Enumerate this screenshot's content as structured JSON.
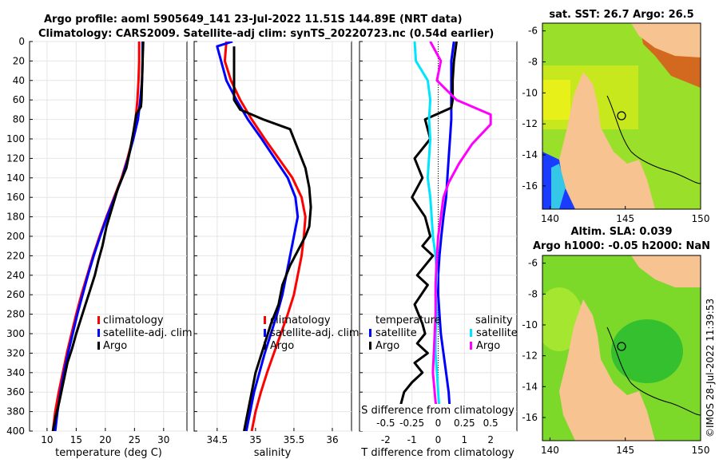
{
  "header": {
    "title_line1": "Argo profile: aoml 5905649_141 23-Jul-2022 11.51S 144.89E (NRT data)",
    "title_line2": "Climatology: CARS2009. Satellite-adj clim: synTS_20220723.nc (0.54d earlier)",
    "copyright": "©IMOS 28-Jul-2022 11:39:53"
  },
  "colors": {
    "climatology": "#ff0000",
    "satellite": "#0000ff",
    "argo": "#000000",
    "temperature": "#0000ff",
    "salinity": "#ff00ff",
    "sat_light": "#00e5ff"
  },
  "chart_data": [
    {
      "type": "line",
      "id": "temperature",
      "xlabel": "temperature (deg C)",
      "ylabel": "",
      "xlim": [
        7,
        34
      ],
      "ylim": [
        400,
        0
      ],
      "x_ticks": [
        10,
        15,
        20,
        25,
        30
      ],
      "y_ticks": [
        0,
        20,
        40,
        60,
        80,
        100,
        120,
        140,
        160,
        180,
        200,
        220,
        240,
        260,
        280,
        300,
        320,
        340,
        360,
        380,
        400
      ],
      "legend": [
        "climatology",
        "satellite-adj. clim",
        "Argo"
      ],
      "legend_position": "lower-right",
      "series": [
        {
          "name": "climatology",
          "color": "#ff0000",
          "x": [
            25.8,
            25.8,
            25.7,
            25.5,
            25.2,
            24.7,
            23.8,
            22.8,
            21.5,
            20.2,
            19.0,
            17.9,
            16.9,
            15.9,
            15.0,
            14.2,
            13.4,
            12.7,
            12.0,
            11.4,
            11.0
          ],
          "y": [
            0,
            20,
            40,
            60,
            80,
            100,
            120,
            140,
            160,
            180,
            200,
            220,
            240,
            260,
            280,
            300,
            320,
            340,
            360,
            380,
            400
          ]
        },
        {
          "name": "satellite-adj. clim",
          "color": "#0000ff",
          "x": [
            26.4,
            26.4,
            26.3,
            26.0,
            25.6,
            24.8,
            23.9,
            22.9,
            21.6,
            20.3,
            19.1,
            18.0,
            17.0,
            16.1,
            15.2,
            14.4,
            13.6,
            12.9,
            12.3,
            11.8,
            11.4
          ],
          "y": [
            0,
            20,
            40,
            60,
            80,
            100,
            120,
            140,
            160,
            180,
            200,
            220,
            240,
            260,
            280,
            300,
            320,
            340,
            360,
            380,
            400
          ]
        },
        {
          "name": "Argo",
          "color": "#000000",
          "x": [
            26.5,
            26.4,
            26.3,
            26.2,
            26.1,
            25.3,
            24.9,
            24.3,
            23.6,
            22.2,
            21.2,
            20.2,
            19.5,
            18.8,
            18.2,
            17.4,
            16.6,
            15.8,
            15.0,
            14.3,
            13.5,
            12.8,
            12.1,
            11.5,
            11.0
          ],
          "y": [
            0,
            20,
            40,
            60,
            67,
            75,
            90,
            110,
            130,
            150,
            170,
            190,
            210,
            225,
            240,
            255,
            270,
            285,
            300,
            315,
            330,
            350,
            370,
            385,
            400
          ]
        }
      ]
    },
    {
      "type": "line",
      "id": "salinity",
      "xlabel": "salinity",
      "ylabel": "",
      "xlim": [
        34.2,
        36.25
      ],
      "ylim": [
        400,
        0
      ],
      "x_ticks": [
        34.5,
        35,
        35.5,
        36
      ],
      "legend": [
        "climatology",
        "satellite-adj. clim",
        "Argo"
      ],
      "legend_position": "lower-right",
      "series": [
        {
          "name": "climatology",
          "color": "#ff0000",
          "x": [
            34.62,
            34.6,
            34.68,
            34.8,
            34.95,
            35.12,
            35.3,
            35.48,
            35.6,
            35.65,
            35.63,
            35.6,
            35.55,
            35.5,
            35.42,
            35.33,
            35.24,
            35.15,
            35.07,
            35.0,
            34.95
          ],
          "y": [
            0,
            20,
            40,
            60,
            80,
            100,
            120,
            140,
            160,
            180,
            200,
            220,
            240,
            260,
            280,
            300,
            320,
            340,
            360,
            380,
            400
          ]
        },
        {
          "name": "satellite-adj. clim",
          "color": "#0000ff",
          "x": [
            34.7,
            34.5,
            34.62,
            34.75,
            34.9,
            35.08,
            35.25,
            35.42,
            35.52,
            35.55,
            35.5,
            35.45,
            35.4,
            35.35,
            35.28,
            35.2,
            35.12,
            35.05,
            34.98,
            34.93,
            34.88
          ],
          "y": [
            0,
            5,
            40,
            60,
            80,
            100,
            120,
            140,
            160,
            180,
            200,
            220,
            240,
            260,
            280,
            300,
            320,
            340,
            360,
            380,
            400
          ]
        },
        {
          "name": "Argo",
          "color": "#000000",
          "x": [
            34.72,
            34.72,
            34.72,
            34.72,
            34.8,
            35.1,
            35.45,
            35.55,
            35.65,
            35.7,
            35.72,
            35.7,
            35.65,
            35.45,
            35.35,
            35.3,
            35.2,
            35.08,
            35.0,
            34.95,
            34.9,
            34.85
          ],
          "y": [
            5,
            20,
            40,
            60,
            70,
            80,
            90,
            110,
            130,
            150,
            170,
            190,
            200,
            230,
            250,
            270,
            290,
            320,
            340,
            360,
            380,
            400
          ]
        }
      ]
    },
    {
      "type": "line",
      "id": "difference",
      "xlabel": "T difference from climatology",
      "secondary_xlabel": "S difference from climatology",
      "xlim": [
        -3,
        3
      ],
      "ylim": [
        400,
        0
      ],
      "x_ticks": [
        -2,
        -1,
        0,
        1,
        2
      ],
      "secondary_x_ticks": [
        "-0.5",
        "-0.25",
        "0",
        "0.25",
        "0.5"
      ],
      "legend_temperature_title": "temperature",
      "legend_salinity_title": "salinity",
      "legend": [
        "satellite",
        "Argo",
        "satellite",
        "Argo"
      ],
      "legend_position": "lower-center",
      "series": [
        {
          "name": "temperature satellite",
          "color": "#0000ff",
          "x": [
            0.6,
            0.5,
            0.5,
            0.5,
            0.5,
            0.45,
            0.4,
            0.35,
            0.3,
            0.2,
            0.12,
            0.05,
            0.0,
            0.0,
            0.05,
            0.1,
            0.2,
            0.3,
            0.4,
            0.45,
            0.5
          ],
          "y": [
            0,
            20,
            40,
            60,
            80,
            100,
            120,
            140,
            160,
            180,
            200,
            220,
            240,
            260,
            280,
            300,
            320,
            340,
            360,
            380,
            400
          ]
        },
        {
          "name": "temperature Argo",
          "color": "#000000",
          "x": [
            0.7,
            0.6,
            0.55,
            0.55,
            0.5,
            -0.5,
            -0.3,
            -0.9,
            -0.6,
            -1.0,
            -0.5,
            -0.3,
            -0.6,
            -0.2,
            -0.8,
            -0.4,
            -0.9,
            -0.6,
            -0.5,
            -0.8,
            -0.4,
            -0.9,
            -0.6,
            -1.0,
            -1.3,
            -1.5,
            -1.5
          ],
          "y": [
            0,
            20,
            40,
            60,
            68,
            80,
            100,
            120,
            140,
            160,
            180,
            200,
            210,
            220,
            240,
            250,
            270,
            290,
            300,
            310,
            320,
            330,
            340,
            350,
            360,
            380,
            400
          ]
        },
        {
          "name": "salinity satellite",
          "color": "#00e5ff",
          "x": [
            -0.9,
            -0.85,
            -0.4,
            -0.3,
            -0.35,
            -0.3,
            -0.35,
            -0.4,
            -0.3,
            -0.25,
            -0.2,
            -0.1,
            -0.05,
            -0.1,
            -0.05,
            -0.1,
            -0.1,
            -0.05,
            0.0,
            0.05,
            0.1
          ],
          "y": [
            0,
            20,
            40,
            60,
            80,
            100,
            120,
            140,
            160,
            180,
            200,
            220,
            240,
            260,
            280,
            300,
            320,
            340,
            360,
            380,
            400
          ]
        },
        {
          "name": "salinity Argo",
          "color": "#ff00ff",
          "x": [
            -0.3,
            0.1,
            -0.05,
            0.7,
            2.0,
            2.0,
            1.3,
            0.8,
            0.4,
            0.2,
            0.1,
            0.0,
            -0.05,
            -0.1,
            -0.1,
            -0.15,
            -0.2,
            -0.1,
            0.0,
            0.1
          ],
          "y": [
            0,
            20,
            40,
            60,
            75,
            85,
            105,
            125,
            145,
            160,
            180,
            200,
            220,
            250,
            280,
            310,
            340,
            370,
            385,
            400
          ]
        }
      ]
    },
    {
      "type": "heatmap",
      "id": "sst_map",
      "title": "sat. SST: 26.7 Argo: 26.5",
      "xlim": [
        139.5,
        150
      ],
      "ylim": [
        -17.5,
        -5.5
      ],
      "x_ticks": [
        140,
        145,
        150
      ],
      "y_ticks": [
        -6,
        -8,
        -10,
        -12,
        -14,
        -16
      ],
      "argo_position": {
        "lon": 144.89,
        "lat": -11.51
      }
    },
    {
      "type": "heatmap",
      "id": "sla_map",
      "title": "Altim. SLA: 0.039",
      "subtitle": "Argo h1000: -0.05 h2000: NaN",
      "xlim": [
        139.5,
        150
      ],
      "ylim": [
        -17.5,
        -5.5
      ],
      "x_ticks": [
        140,
        145,
        150
      ],
      "y_ticks": [
        -6,
        -8,
        -10,
        -12,
        -14,
        -16
      ],
      "argo_position": {
        "lon": 144.89,
        "lat": -11.51
      }
    }
  ]
}
